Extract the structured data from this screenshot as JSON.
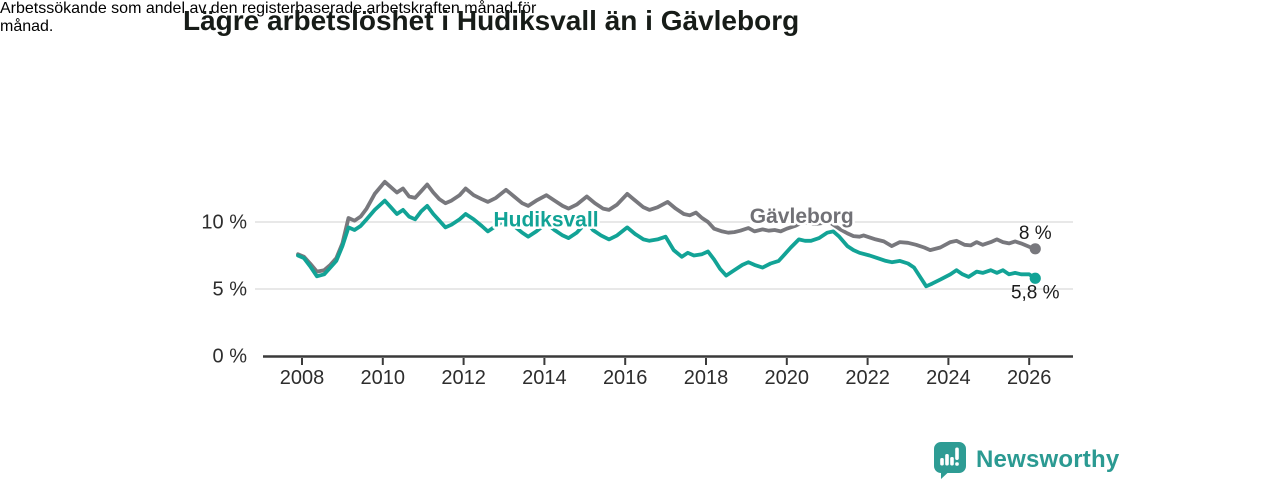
{
  "header": {
    "title": "Lägre arbetslöshet i Hudiksvall än i Gävleborg",
    "subtitle_lines": [
      "Arbetssökande som andel av den registerbaserade arbetskraften månad för",
      "månad."
    ]
  },
  "chart_data": {
    "type": "line",
    "unit": "%",
    "grid": "horizontal",
    "xlim": [
      2007.9,
      2027.1
    ],
    "ylim": [
      0,
      13.5
    ],
    "x_ticks": [
      2008,
      2010,
      2012,
      2014,
      2016,
      2018,
      2020,
      2022,
      2024,
      2026
    ],
    "y_ticks": [
      {
        "value": 0,
        "label": "0 %"
      },
      {
        "value": 5,
        "label": "5 %"
      },
      {
        "value": 10,
        "label": "10 %"
      }
    ],
    "series": [
      {
        "name": "Gävleborg",
        "color": "#78787d",
        "label_color": "#717176",
        "label": {
          "text": "Gävleborg",
          "x": 2020.37,
          "y": 10.45
        },
        "end_label": "8 %",
        "end_label_side": "above",
        "points": [
          [
            2007.9,
            7.6
          ],
          [
            2008.05,
            7.4
          ],
          [
            2008.2,
            6.9
          ],
          [
            2008.37,
            6.3
          ],
          [
            2008.55,
            6.4
          ],
          [
            2008.7,
            6.8
          ],
          [
            2008.85,
            7.3
          ],
          [
            2009.0,
            8.4
          ],
          [
            2009.15,
            10.3
          ],
          [
            2009.3,
            10.1
          ],
          [
            2009.45,
            10.4
          ],
          [
            2009.6,
            11.0
          ],
          [
            2009.8,
            12.1
          ],
          [
            2010.05,
            13.0
          ],
          [
            2010.2,
            12.6
          ],
          [
            2010.35,
            12.2
          ],
          [
            2010.5,
            12.5
          ],
          [
            2010.65,
            11.9
          ],
          [
            2010.8,
            11.8
          ],
          [
            2010.95,
            12.3
          ],
          [
            2011.1,
            12.8
          ],
          [
            2011.25,
            12.2
          ],
          [
            2011.4,
            11.7
          ],
          [
            2011.55,
            11.4
          ],
          [
            2011.7,
            11.6
          ],
          [
            2011.9,
            12.0
          ],
          [
            2012.05,
            12.5
          ],
          [
            2012.25,
            12.0
          ],
          [
            2012.45,
            11.7
          ],
          [
            2012.6,
            11.5
          ],
          [
            2012.8,
            11.8
          ],
          [
            2013.05,
            12.4
          ],
          [
            2013.25,
            11.9
          ],
          [
            2013.45,
            11.4
          ],
          [
            2013.6,
            11.2
          ],
          [
            2013.8,
            11.6
          ],
          [
            2014.05,
            12.0
          ],
          [
            2014.25,
            11.6
          ],
          [
            2014.45,
            11.2
          ],
          [
            2014.6,
            11.0
          ],
          [
            2014.8,
            11.3
          ],
          [
            2015.05,
            11.9
          ],
          [
            2015.25,
            11.4
          ],
          [
            2015.45,
            11.0
          ],
          [
            2015.6,
            10.9
          ],
          [
            2015.8,
            11.3
          ],
          [
            2016.05,
            12.1
          ],
          [
            2016.25,
            11.6
          ],
          [
            2016.45,
            11.1
          ],
          [
            2016.6,
            10.9
          ],
          [
            2016.8,
            11.1
          ],
          [
            2017.05,
            11.5
          ],
          [
            2017.25,
            11.0
          ],
          [
            2017.45,
            10.6
          ],
          [
            2017.6,
            10.5
          ],
          [
            2017.75,
            10.7
          ],
          [
            2017.9,
            10.3
          ],
          [
            2018.05,
            10.0
          ],
          [
            2018.2,
            9.5
          ],
          [
            2018.4,
            9.3
          ],
          [
            2018.55,
            9.2
          ],
          [
            2018.7,
            9.25
          ],
          [
            2018.85,
            9.35
          ],
          [
            2019.05,
            9.55
          ],
          [
            2019.2,
            9.3
          ],
          [
            2019.4,
            9.45
          ],
          [
            2019.55,
            9.35
          ],
          [
            2019.7,
            9.4
          ],
          [
            2019.85,
            9.3
          ],
          [
            2020.0,
            9.5
          ],
          [
            2020.2,
            9.7
          ],
          [
            2020.4,
            10.0
          ],
          [
            2020.55,
            9.9
          ],
          [
            2020.7,
            9.85
          ],
          [
            2020.85,
            9.9
          ],
          [
            2021.05,
            10.0
          ],
          [
            2021.2,
            9.7
          ],
          [
            2021.35,
            9.4
          ],
          [
            2021.5,
            9.15
          ],
          [
            2021.65,
            8.95
          ],
          [
            2021.8,
            8.9
          ],
          [
            2021.9,
            9.0
          ],
          [
            2022.05,
            8.85
          ],
          [
            2022.2,
            8.7
          ],
          [
            2022.4,
            8.55
          ],
          [
            2022.6,
            8.2
          ],
          [
            2022.8,
            8.5
          ],
          [
            2023.0,
            8.45
          ],
          [
            2023.2,
            8.3
          ],
          [
            2023.4,
            8.1
          ],
          [
            2023.55,
            7.9
          ],
          [
            2023.8,
            8.1
          ],
          [
            2024.05,
            8.5
          ],
          [
            2024.2,
            8.6
          ],
          [
            2024.4,
            8.3
          ],
          [
            2024.55,
            8.25
          ],
          [
            2024.7,
            8.5
          ],
          [
            2024.85,
            8.3
          ],
          [
            2025.05,
            8.5
          ],
          [
            2025.2,
            8.7
          ],
          [
            2025.35,
            8.5
          ],
          [
            2025.5,
            8.4
          ],
          [
            2025.65,
            8.55
          ],
          [
            2025.8,
            8.4
          ],
          [
            2026.0,
            8.15
          ],
          [
            2026.15,
            8.0
          ]
        ]
      },
      {
        "name": "Hudiksvall",
        "color": "#12a396",
        "label_color": "#12a396",
        "label": {
          "text": "Hudiksvall",
          "x": 2014.04,
          "y": 10.2
        },
        "end_label": "5,8 %",
        "end_label_side": "below",
        "points": [
          [
            2007.9,
            7.5
          ],
          [
            2008.05,
            7.3
          ],
          [
            2008.2,
            6.7
          ],
          [
            2008.37,
            5.95
          ],
          [
            2008.55,
            6.1
          ],
          [
            2008.7,
            6.6
          ],
          [
            2008.85,
            7.1
          ],
          [
            2009.0,
            8.2
          ],
          [
            2009.15,
            9.6
          ],
          [
            2009.3,
            9.4
          ],
          [
            2009.45,
            9.7
          ],
          [
            2009.6,
            10.2
          ],
          [
            2009.8,
            10.9
          ],
          [
            2010.05,
            11.6
          ],
          [
            2010.2,
            11.1
          ],
          [
            2010.35,
            10.6
          ],
          [
            2010.5,
            10.9
          ],
          [
            2010.65,
            10.4
          ],
          [
            2010.8,
            10.2
          ],
          [
            2010.95,
            10.8
          ],
          [
            2011.1,
            11.2
          ],
          [
            2011.25,
            10.6
          ],
          [
            2011.4,
            10.1
          ],
          [
            2011.55,
            9.6
          ],
          [
            2011.7,
            9.8
          ],
          [
            2011.9,
            10.2
          ],
          [
            2012.05,
            10.6
          ],
          [
            2012.25,
            10.2
          ],
          [
            2012.45,
            9.7
          ],
          [
            2012.6,
            9.3
          ],
          [
            2012.8,
            9.7
          ],
          [
            2013.05,
            10.2
          ],
          [
            2013.25,
            9.7
          ],
          [
            2013.45,
            9.2
          ],
          [
            2013.6,
            8.9
          ],
          [
            2013.8,
            9.3
          ],
          [
            2014.05,
            9.9
          ],
          [
            2014.25,
            9.4
          ],
          [
            2014.45,
            9.0
          ],
          [
            2014.6,
            8.8
          ],
          [
            2014.8,
            9.2
          ],
          [
            2015.05,
            10.0
          ],
          [
            2015.2,
            9.4
          ],
          [
            2015.4,
            9.0
          ],
          [
            2015.6,
            8.7
          ],
          [
            2015.8,
            9.0
          ],
          [
            2016.05,
            9.6
          ],
          [
            2016.25,
            9.1
          ],
          [
            2016.45,
            8.7
          ],
          [
            2016.6,
            8.6
          ],
          [
            2016.8,
            8.7
          ],
          [
            2017.0,
            8.9
          ],
          [
            2017.2,
            7.9
          ],
          [
            2017.4,
            7.4
          ],
          [
            2017.55,
            7.7
          ],
          [
            2017.7,
            7.5
          ],
          [
            2017.9,
            7.6
          ],
          [
            2018.05,
            7.8
          ],
          [
            2018.2,
            7.2
          ],
          [
            2018.35,
            6.5
          ],
          [
            2018.5,
            6.0
          ],
          [
            2018.7,
            6.4
          ],
          [
            2018.9,
            6.8
          ],
          [
            2019.05,
            7.0
          ],
          [
            2019.2,
            6.8
          ],
          [
            2019.4,
            6.6
          ],
          [
            2019.6,
            6.9
          ],
          [
            2019.8,
            7.1
          ],
          [
            2019.95,
            7.6
          ],
          [
            2020.1,
            8.1
          ],
          [
            2020.3,
            8.7
          ],
          [
            2020.45,
            8.6
          ],
          [
            2020.6,
            8.6
          ],
          [
            2020.8,
            8.8
          ],
          [
            2021.0,
            9.2
          ],
          [
            2021.15,
            9.3
          ],
          [
            2021.3,
            8.9
          ],
          [
            2021.5,
            8.2
          ],
          [
            2021.65,
            7.9
          ],
          [
            2021.8,
            7.7
          ],
          [
            2022.05,
            7.5
          ],
          [
            2022.25,
            7.3
          ],
          [
            2022.45,
            7.1
          ],
          [
            2022.6,
            7.0
          ],
          [
            2022.8,
            7.1
          ],
          [
            2023.0,
            6.9
          ],
          [
            2023.15,
            6.6
          ],
          [
            2023.3,
            5.9
          ],
          [
            2023.45,
            5.2
          ],
          [
            2023.6,
            5.4
          ],
          [
            2023.8,
            5.7
          ],
          [
            2024.05,
            6.1
          ],
          [
            2024.2,
            6.4
          ],
          [
            2024.35,
            6.1
          ],
          [
            2024.5,
            5.9
          ],
          [
            2024.7,
            6.3
          ],
          [
            2024.85,
            6.2
          ],
          [
            2025.05,
            6.4
          ],
          [
            2025.2,
            6.2
          ],
          [
            2025.35,
            6.4
          ],
          [
            2025.5,
            6.1
          ],
          [
            2025.65,
            6.2
          ],
          [
            2025.8,
            6.1
          ],
          [
            2026.0,
            6.1
          ],
          [
            2026.15,
            5.8
          ]
        ]
      }
    ]
  },
  "branding": {
    "name": "Newsworthy",
    "icon": "newsworthy-speech-bubble-bar-chart-icon",
    "color": "#2b9a92"
  }
}
